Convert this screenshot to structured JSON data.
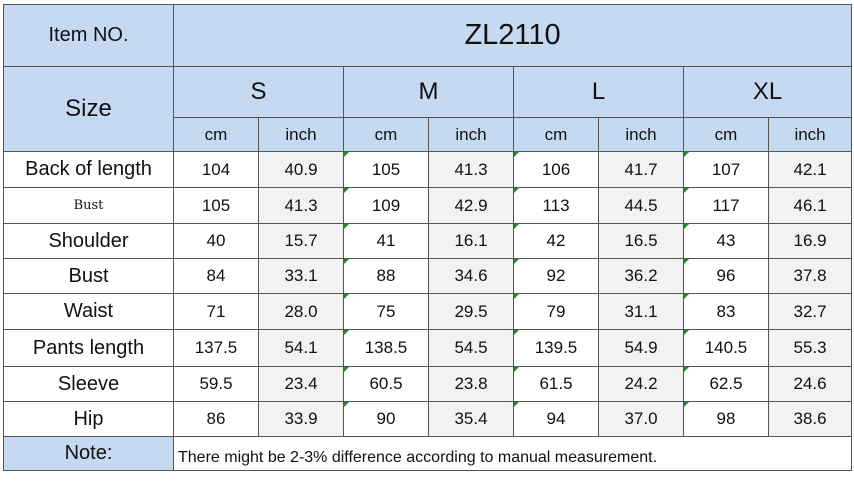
{
  "header": {
    "item_label": "Item NO.",
    "item_value": "ZL2110",
    "size_label": "Size",
    "sizes": [
      "S",
      "M",
      "L",
      "XL"
    ],
    "units": [
      "cm",
      "inch"
    ]
  },
  "rows": [
    {
      "label": "Back of length",
      "values": [
        "104",
        "40.9",
        "105",
        "41.3",
        "106",
        "41.7",
        "107",
        "42.1"
      ]
    },
    {
      "label": "Bust",
      "values": [
        "105",
        "41.3",
        "109",
        "42.9",
        "113",
        "44.5",
        "117",
        "46.1"
      ]
    },
    {
      "label": "Shoulder",
      "values": [
        "40",
        "15.7",
        "41",
        "16.1",
        "42",
        "16.5",
        "43",
        "16.9"
      ]
    },
    {
      "label": "Bust",
      "values": [
        "84",
        "33.1",
        "88",
        "34.6",
        "92",
        "36.2",
        "96",
        "37.8"
      ]
    },
    {
      "label": "Waist",
      "values": [
        "71",
        "28.0",
        "75",
        "29.5",
        "79",
        "31.1",
        "83",
        "32.7"
      ]
    },
    {
      "label": "Pants length",
      "values": [
        "137.5",
        "54.1",
        "138.5",
        "54.5",
        "139.5",
        "54.9",
        "140.5",
        "55.3"
      ]
    },
    {
      "label": "Sleeve",
      "values": [
        "59.5",
        "23.4",
        "60.5",
        "23.8",
        "61.5",
        "24.2",
        "62.5",
        "24.6"
      ]
    },
    {
      "label": "Hip",
      "values": [
        "86",
        "33.9",
        "90",
        "35.4",
        "94",
        "37.0",
        "98",
        "38.6"
      ]
    }
  ],
  "note": {
    "label": "Note:",
    "text": "There might be 2-3% difference according to manual measurement."
  },
  "colors": {
    "header_fill": "#c5d9f1",
    "inch_fill": "#f2f2f2",
    "marker": "#1e8a2c"
  }
}
